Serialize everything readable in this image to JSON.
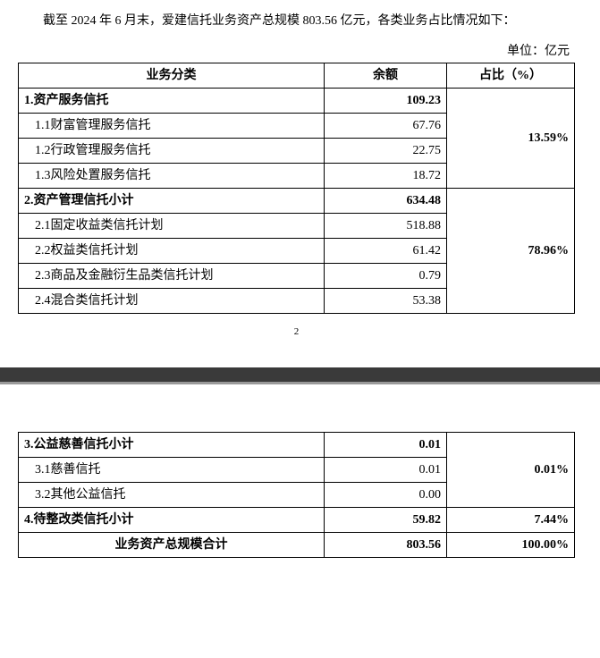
{
  "intro_text": "截至 2024 年 6 月末，爱建信托业务资产总规模 803.56 亿元，各类业务占比情况如下：",
  "unit_label": "单位：亿元",
  "page_number": "2",
  "headers": {
    "category": "业务分类",
    "balance": "余额",
    "percent": "占比（%）"
  },
  "table1_rows": [
    {
      "name": "1.资产服务信托",
      "balance": "109.23",
      "bold": true,
      "pct": null
    },
    {
      "name": "1.1财富管理服务信托",
      "balance": "67.76",
      "indent": true,
      "pct": null
    },
    {
      "name": "1.2行政管理服务信托",
      "balance": "22.75",
      "indent": true,
      "pct": null
    },
    {
      "name": "1.3风险处置服务信托",
      "balance": "18.72",
      "indent": true,
      "pct": null
    },
    {
      "name": "2.资产管理信托小计",
      "balance": "634.48",
      "bold": true,
      "pct": null
    },
    {
      "name": "2.1固定收益类信托计划",
      "balance": "518.88",
      "indent": true,
      "pct": null
    },
    {
      "name": "2.2权益类信托计划",
      "balance": "61.42",
      "indent": true,
      "pct": null
    },
    {
      "name": "2.3商品及金融衍生品类信托计划",
      "balance": "0.79",
      "indent": true,
      "pct": null
    },
    {
      "name": "2.4混合类信托计划",
      "balance": "53.38",
      "indent": true,
      "pct": null
    }
  ],
  "pct_group1": {
    "start": 0,
    "span": 4,
    "value": "13.59%"
  },
  "pct_group2": {
    "start": 4,
    "span": 5,
    "value": "78.96%"
  },
  "table2_rows": [
    {
      "name": "3.公益慈善信托小计",
      "balance": "0.01",
      "bold": true
    },
    {
      "name": "3.1慈善信托",
      "balance": "0.01",
      "indent": true
    },
    {
      "name": "3.2其他公益信托",
      "balance": "0.00",
      "indent": true
    }
  ],
  "pct_group3": {
    "start": 0,
    "span": 3,
    "value": "0.01%"
  },
  "row_section4": {
    "name": "4.待整改类信托小计",
    "balance": "59.82",
    "pct": "7.44%"
  },
  "row_total": {
    "name": "业务资产总规模合计",
    "balance": "803.56",
    "pct": "100.00%"
  }
}
